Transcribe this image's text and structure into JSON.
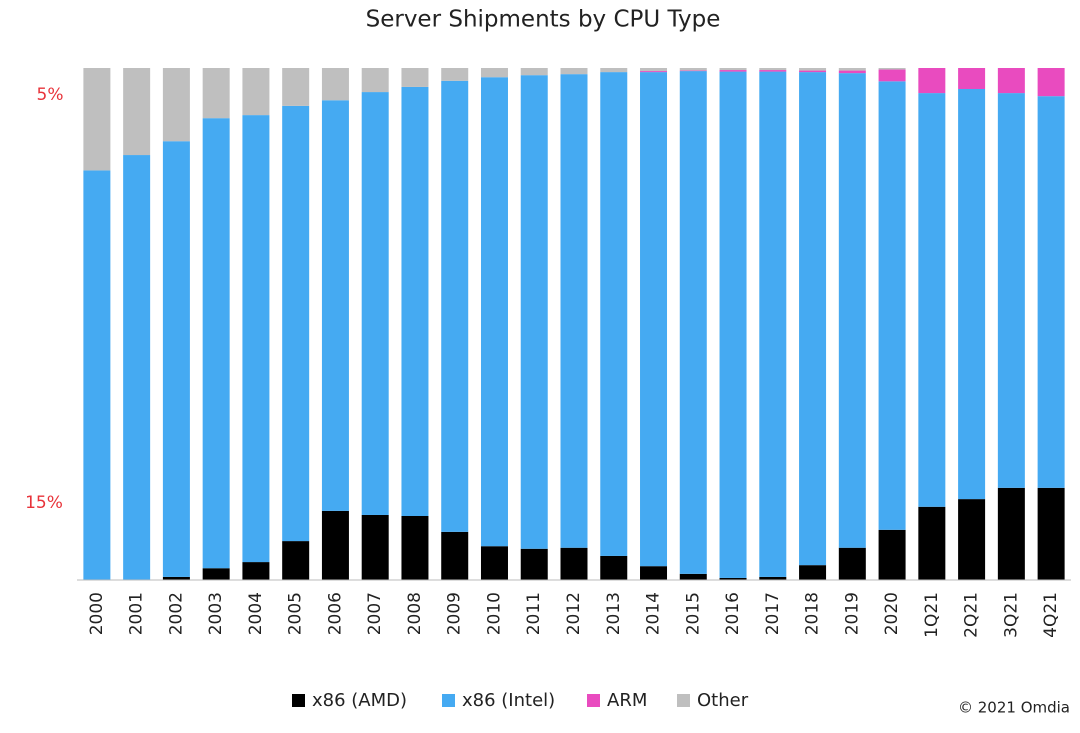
{
  "chart_data": {
    "type": "stacked_bar_100",
    "title": "Server Shipments by CPU Type",
    "annotations": [
      "5%",
      "15%"
    ],
    "source": "© 2021 Omdia",
    "categories": [
      "2000",
      "2001",
      "2002",
      "2003",
      "2004",
      "2005",
      "2006",
      "2007",
      "2008",
      "2009",
      "2010",
      "2011",
      "2012",
      "2013",
      "2014",
      "2015",
      "2016",
      "2017",
      "2018",
      "2019",
      "2020",
      "1Q21",
      "2Q21",
      "3Q21",
      "4Q21"
    ],
    "ylim": [
      0,
      100
    ],
    "series": [
      {
        "name": "x86 (AMD)",
        "color": "#000000",
        "values": [
          0,
          0,
          0.6,
          2.3,
          3.5,
          7.6,
          13.5,
          12.7,
          12.5,
          9.4,
          6.6,
          6.1,
          6.3,
          4.7,
          2.7,
          1.2,
          0.4,
          0.6,
          2.9,
          6.3,
          9.8,
          14.3,
          15.8,
          18.0,
          18.0
        ]
      },
      {
        "name": "x86 (Intel)",
        "color": "#45aaf2",
        "values": [
          80,
          83,
          85.1,
          87.9,
          87.3,
          85.0,
          80.2,
          82.6,
          83.8,
          88.1,
          91.6,
          92.5,
          92.5,
          94.5,
          96.5,
          98.2,
          98.9,
          98.7,
          96.3,
          92.7,
          87.6,
          80.8,
          80.1,
          77.1,
          76.5
        ]
      },
      {
        "name": "ARM",
        "color": "#e94bbf",
        "values": [
          0,
          0,
          0,
          0,
          0,
          0,
          0,
          0,
          0,
          0,
          0,
          0,
          0,
          0,
          0.2,
          0.1,
          0.3,
          0.3,
          0.3,
          0.5,
          2.3,
          4.9,
          4.1,
          4.9,
          5.5
        ]
      },
      {
        "name": "Other",
        "color": "#bfbfbf",
        "values": [
          20,
          17,
          14.3,
          9.8,
          9.2,
          7.4,
          6.3,
          4.7,
          3.7,
          2.5,
          1.8,
          1.4,
          1.2,
          0.8,
          0.6,
          0.5,
          0.4,
          0.4,
          0.5,
          0.5,
          0.3,
          0,
          0,
          0,
          0
        ]
      }
    ]
  }
}
